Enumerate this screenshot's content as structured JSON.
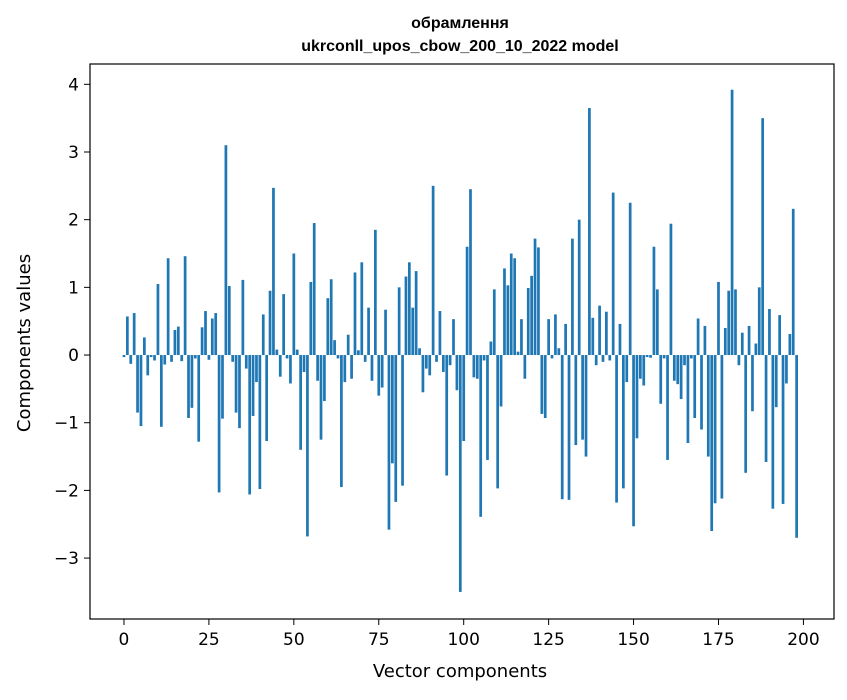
{
  "chart_data": {
    "type": "bar",
    "title_line1": "обрамлення",
    "title_line2": "ukrconll_upos_cbow_200_10_2022 model",
    "xlabel": "Vector components",
    "ylabel": "Components values",
    "xlim": [
      -10,
      209
    ],
    "ylim": [
      -3.9,
      4.3
    ],
    "xticks": [
      0,
      25,
      50,
      75,
      100,
      125,
      150,
      175,
      200
    ],
    "yticks": [
      -3,
      -2,
      -1,
      0,
      1,
      2,
      3,
      4
    ],
    "grid": false,
    "bar_color": "#1f77b4",
    "values": [
      -0.03,
      0.57,
      -0.13,
      0.62,
      -0.85,
      -1.05,
      0.26,
      -0.3,
      -0.03,
      -0.08,
      1.05,
      -1.06,
      -0.14,
      1.43,
      -0.1,
      0.37,
      0.42,
      -0.09,
      1.46,
      -0.93,
      -0.78,
      -0.05,
      -1.28,
      0.41,
      0.65,
      -0.07,
      0.54,
      0.62,
      -2.03,
      -0.94,
      3.1,
      1.02,
      -0.1,
      -0.85,
      -1.08,
      1.11,
      -0.2,
      -2.06,
      -0.9,
      -0.4,
      -1.98,
      0.6,
      -1.27,
      0.95,
      2.47,
      0.08,
      -0.32,
      0.9,
      -0.05,
      -0.42,
      1.5,
      0.08,
      -1.4,
      -0.25,
      -2.68,
      1.08,
      1.95,
      -0.38,
      -1.25,
      -0.68,
      0.84,
      1.12,
      0.22,
      -0.05,
      -1.95,
      -0.4,
      0.3,
      -0.35,
      1.22,
      0.07,
      1.37,
      -0.1,
      0.7,
      -0.38,
      1.85,
      -0.6,
      -0.48,
      0.67,
      -2.58,
      -1.6,
      -2.17,
      1.0,
      -1.93,
      1.16,
      1.37,
      0.7,
      1.24,
      0.1,
      -0.55,
      -0.2,
      -0.3,
      2.5,
      -0.1,
      0.65,
      -0.25,
      -1.78,
      -0.15,
      0.53,
      -0.52,
      -3.5,
      -1.27,
      1.6,
      2.45,
      -0.33,
      -0.35,
      -2.39,
      -0.08,
      -1.55,
      0.2,
      0.97,
      -1.97,
      -0.76,
      1.28,
      1.03,
      1.5,
      1.43,
      0.05,
      0.53,
      -0.35,
      0.99,
      1.17,
      1.72,
      1.59,
      -0.87,
      -0.93,
      0.53,
      -0.05,
      0.6,
      0.1,
      -2.13,
      0.46,
      -2.14,
      1.72,
      -1.33,
      2.0,
      -1.25,
      -1.5,
      3.65,
      0.55,
      -0.15,
      0.73,
      -0.1,
      0.64,
      -0.08,
      2.4,
      -2.18,
      0.46,
      -1.97,
      -0.4,
      2.25,
      -2.53,
      -1.23,
      -0.35,
      -0.45,
      -0.03,
      -0.04,
      1.6,
      0.97,
      -0.72,
      -0.05,
      -1.55,
      1.94,
      -0.38,
      -0.43,
      -0.65,
      -0.15,
      -1.3,
      -0.05,
      -0.93,
      0.54,
      -1.1,
      0.43,
      -1.5,
      -2.6,
      -2.19,
      1.08,
      -2.12,
      0.4,
      0.95,
      3.92,
      0.97,
      -0.15,
      0.33,
      -1.74,
      0.43,
      -0.83,
      0.17,
      1.0,
      3.5,
      -1.58,
      0.68,
      -2.27,
      -0.77,
      0.59,
      -2.2,
      -0.42,
      0.31,
      2.16,
      -2.7
    ]
  }
}
